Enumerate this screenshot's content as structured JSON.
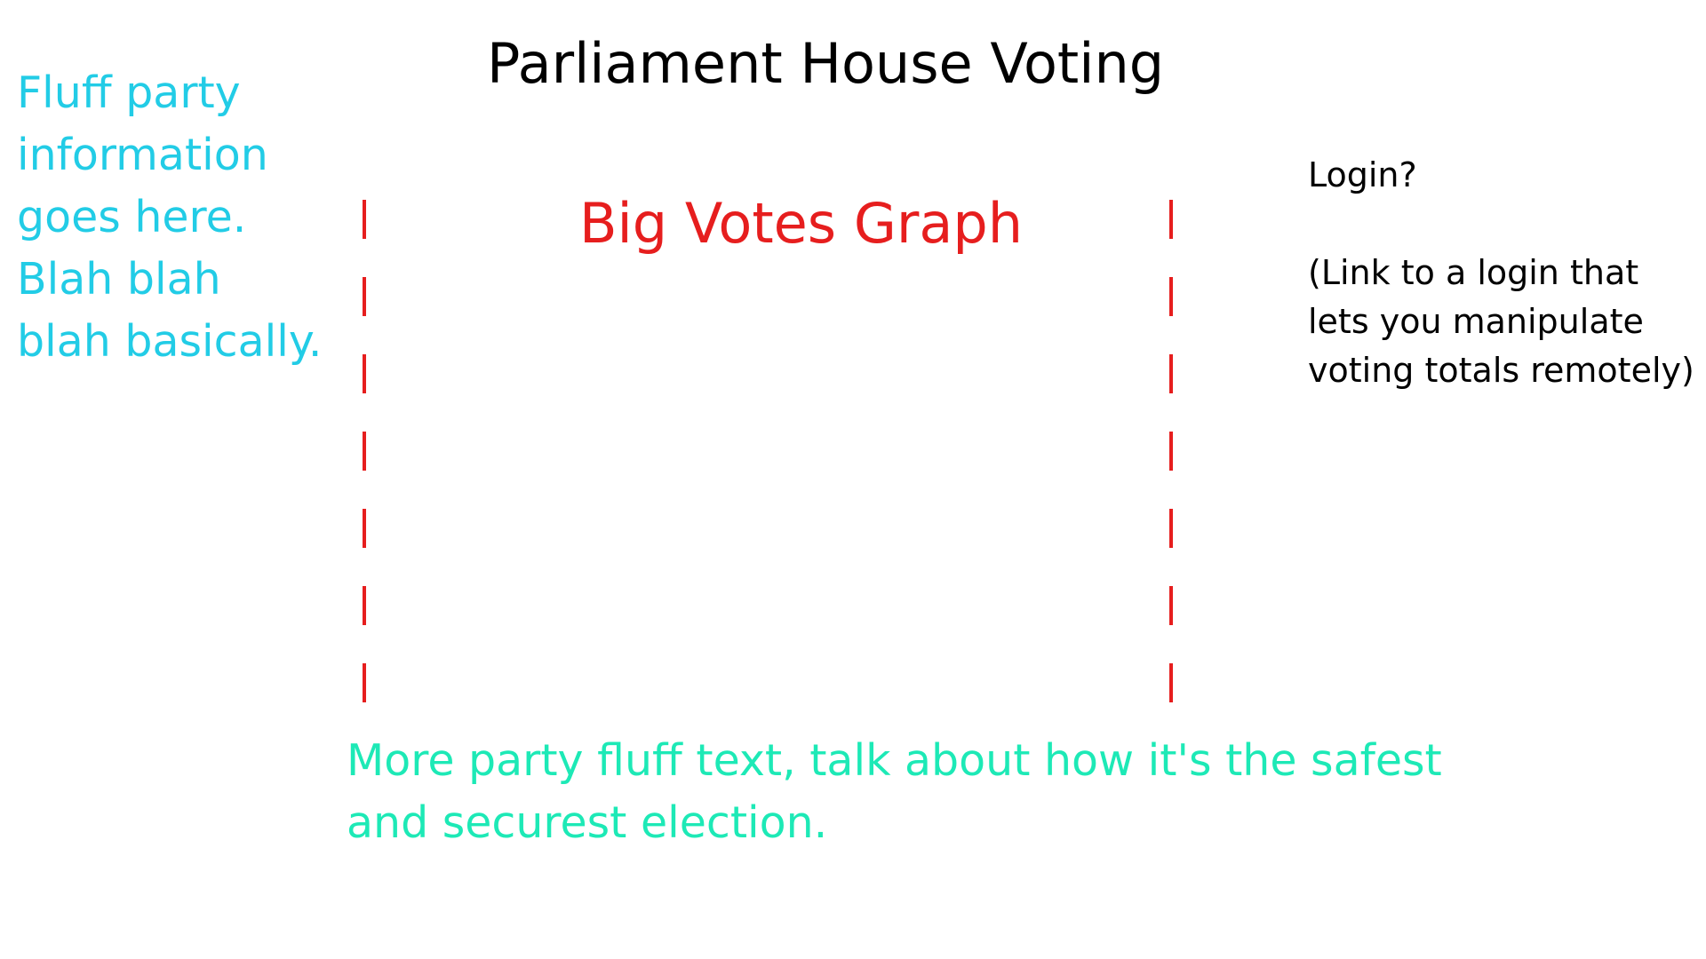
{
  "header": {
    "title": "Parliament House Voting"
  },
  "left_panel": {
    "text": "Fluff party\ninformation\ngoes here.\nBlah blah\nblah basically."
  },
  "login": {
    "label": "Login?",
    "description": "(Link to a login that\nlets you manipulate\nvoting totals remotely)"
  },
  "graph_area": {
    "heading": "Big Votes Graph"
  },
  "footer": {
    "text": "More party fluff text, talk about how it's the safest and securest election."
  },
  "colors": {
    "title": "#000000",
    "left_text": "#22cce6",
    "graph": "#e61e1e",
    "bottom_text": "#1de9b6",
    "login_text": "#000000"
  }
}
